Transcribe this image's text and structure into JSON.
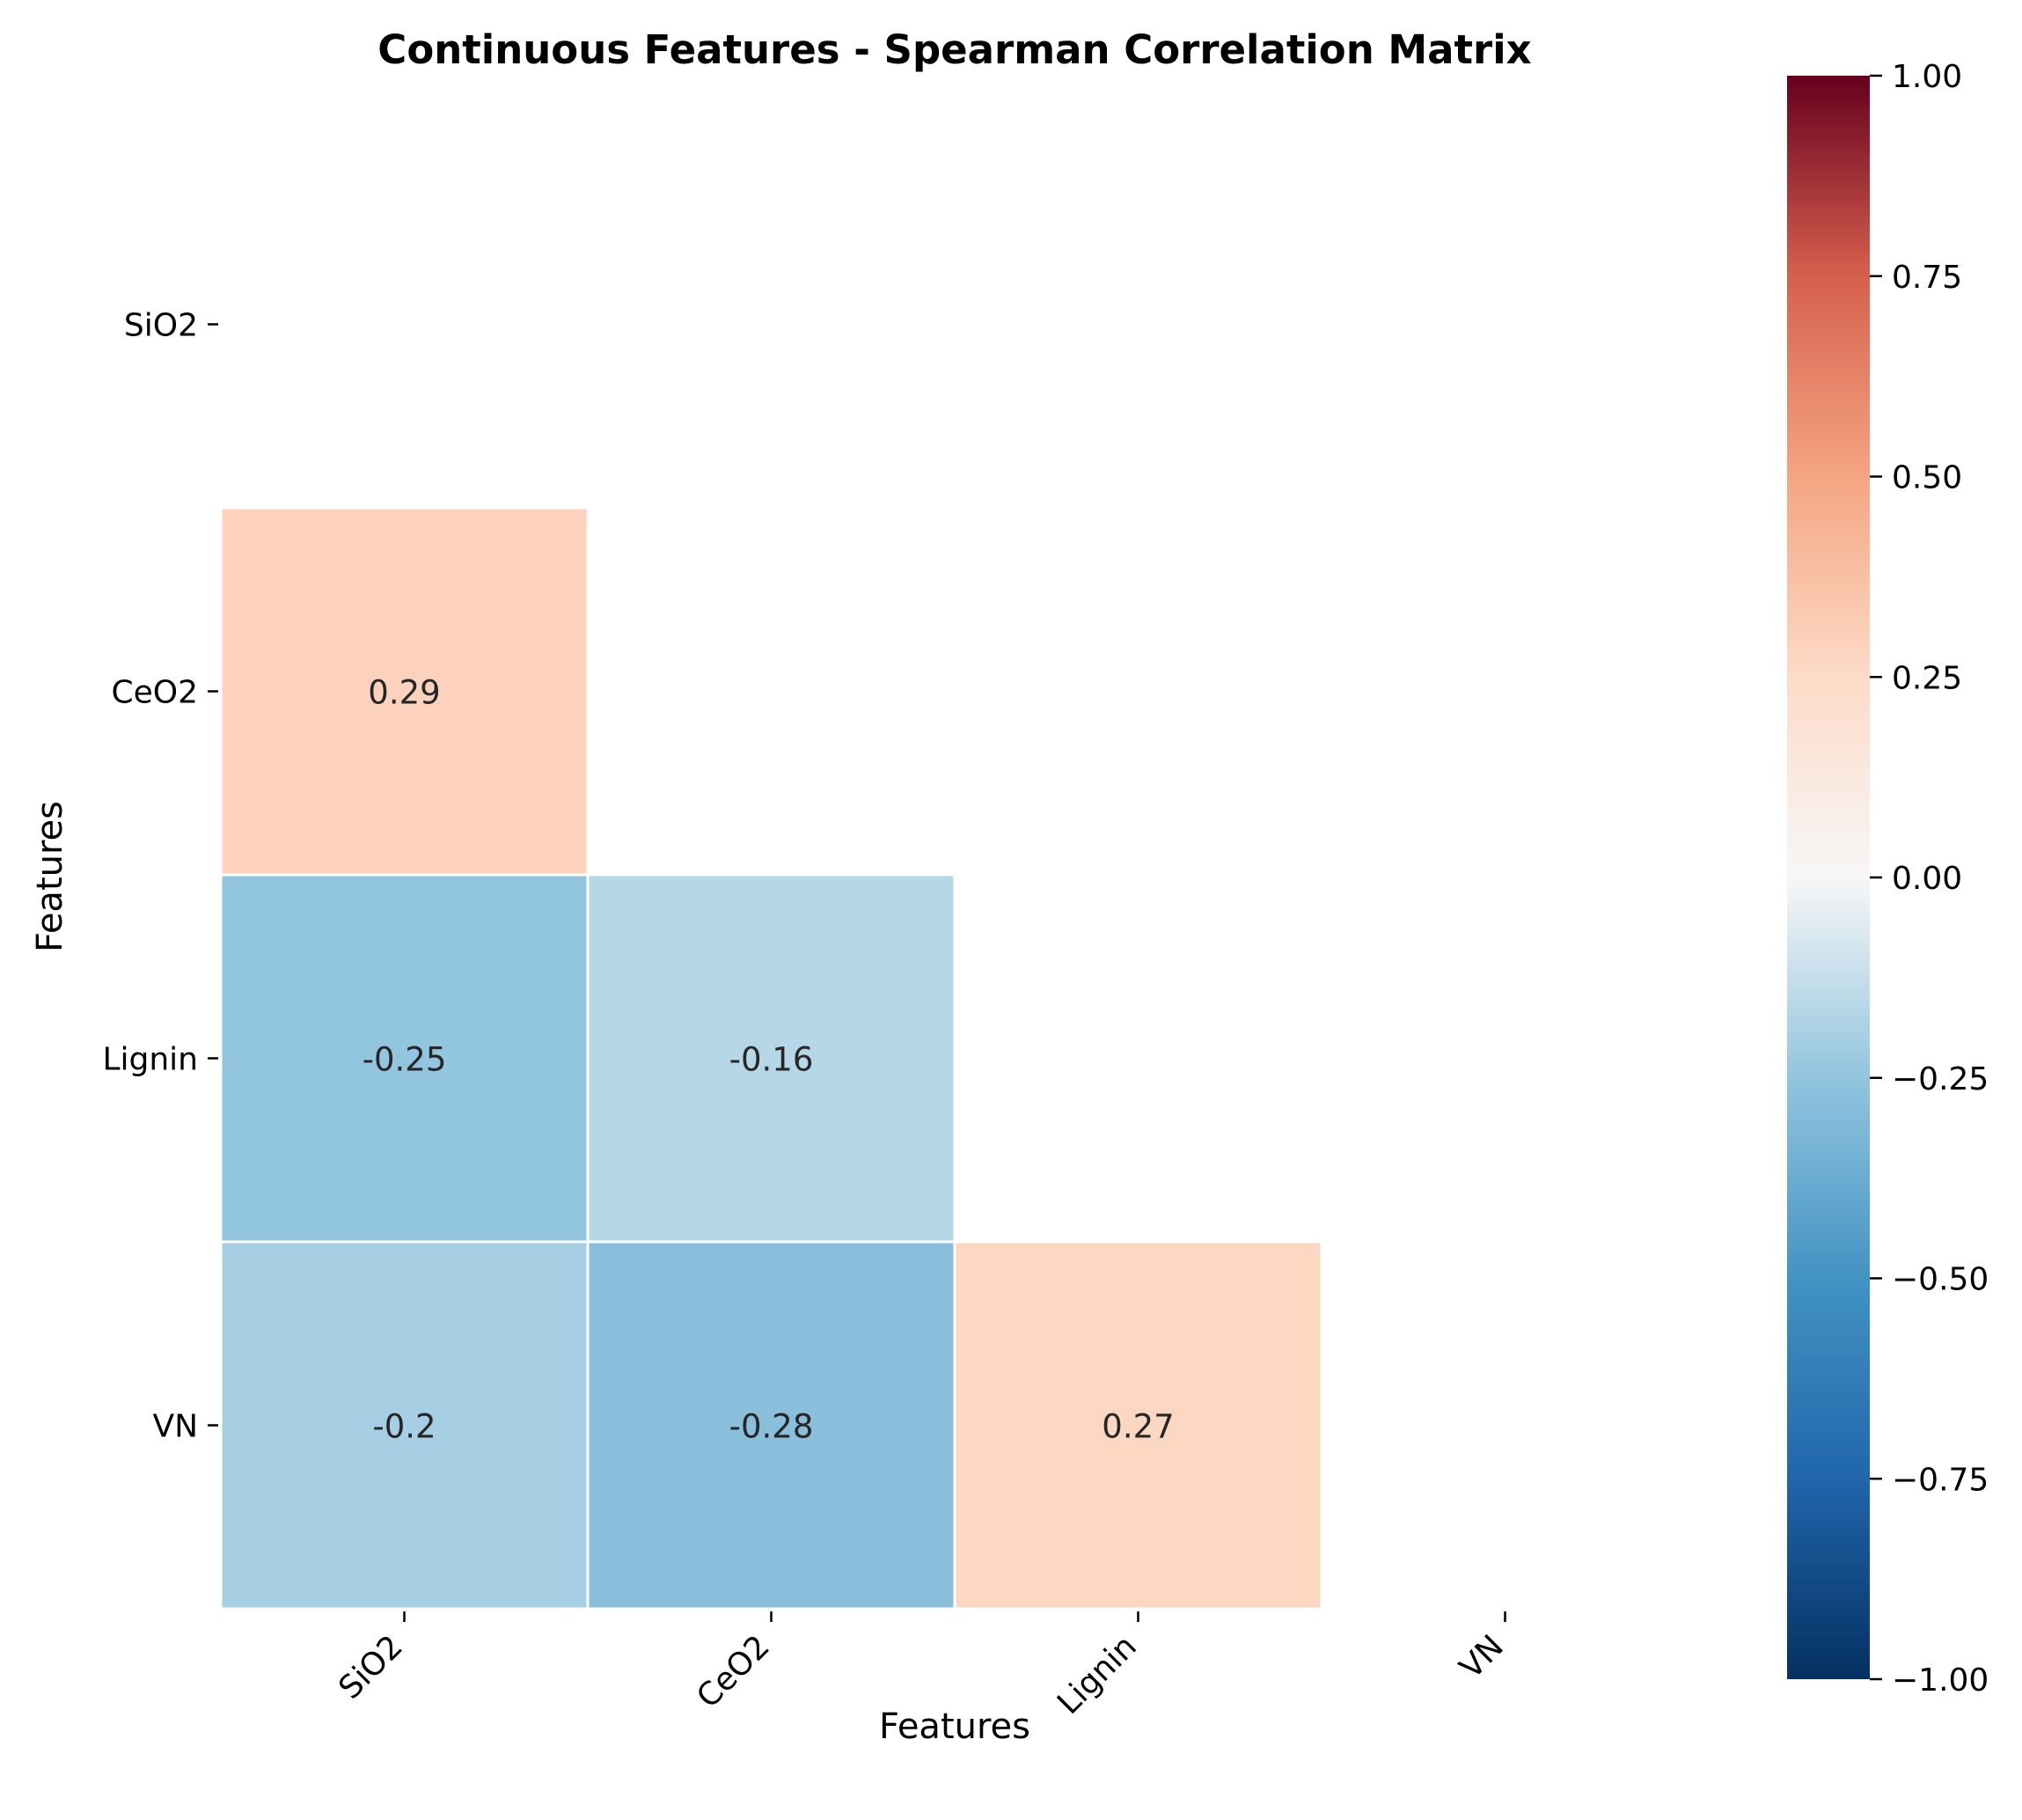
{
  "chart_data": {
    "type": "heatmap",
    "title": "Continuous Features - Spearman Correlation Matrix",
    "xlabel": "Features",
    "ylabel": "Features",
    "x_categories": [
      "SiO2",
      "CeO2",
      "Lignin",
      "VN"
    ],
    "y_categories": [
      "SiO2",
      "CeO2",
      "Lignin",
      "VN"
    ],
    "mask": "upper-triangle-including-diagonal",
    "cells": [
      {
        "row": "CeO2",
        "col": "SiO2",
        "value": 0.29,
        "label": "0.29"
      },
      {
        "row": "Lignin",
        "col": "SiO2",
        "value": -0.25,
        "label": "-0.25"
      },
      {
        "row": "Lignin",
        "col": "CeO2",
        "value": -0.16,
        "label": "-0.16"
      },
      {
        "row": "VN",
        "col": "SiO2",
        "value": -0.2,
        "label": "-0.2"
      },
      {
        "row": "VN",
        "col": "CeO2",
        "value": -0.28,
        "label": "-0.28"
      },
      {
        "row": "VN",
        "col": "Lignin",
        "value": 0.27,
        "label": "0.27"
      }
    ],
    "colormap": "RdBu_r",
    "colorbar": {
      "range": [
        -1.0,
        1.0
      ],
      "ticks": [
        1.0,
        0.75,
        0.5,
        0.25,
        0.0,
        -0.25,
        -0.5,
        -0.75,
        -1.0
      ],
      "tick_labels": [
        "1.00",
        "0.75",
        "0.50",
        "0.25",
        "0.00",
        "−0.25",
        "−0.50",
        "−0.75",
        "−1.00"
      ]
    },
    "grid": false,
    "colors": {
      "text": "#262626",
      "axis": "#000000",
      "cell_border": "#ffffff"
    }
  }
}
